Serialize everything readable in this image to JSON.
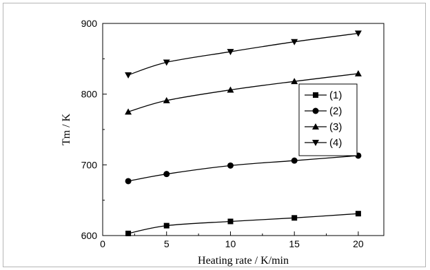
{
  "chart_data": {
    "type": "line",
    "xlabel": "Heating rate / K/min",
    "ylabel": "Tm / K",
    "xlim": [
      0,
      22
    ],
    "ylim": [
      600,
      900
    ],
    "x_ticks": [
      0,
      5,
      10,
      15,
      20
    ],
    "y_ticks": [
      600,
      700,
      800,
      900
    ],
    "grid": false,
    "legend_position": "right-middle",
    "x": [
      2,
      5,
      10,
      15,
      20
    ],
    "series": [
      {
        "name": "(1)",
        "marker": "square",
        "values": [
          603,
          614,
          620,
          625,
          631
        ]
      },
      {
        "name": "(2)",
        "marker": "circle",
        "values": [
          677,
          687,
          699,
          706,
          713
        ]
      },
      {
        "name": "(3)",
        "marker": "triangle-up",
        "values": [
          775,
          791,
          806,
          818,
          829
        ]
      },
      {
        "name": "(4)",
        "marker": "triangle-down",
        "values": [
          827,
          845,
          860,
          874,
          886
        ]
      }
    ],
    "colors": {
      "line": "#000000",
      "marker": "#000000",
      "axis": "#000000"
    }
  }
}
